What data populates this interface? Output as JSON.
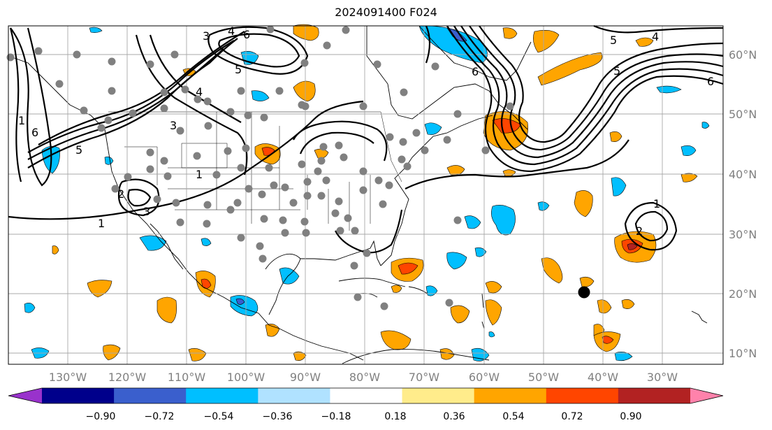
{
  "title": "2024091400 F024",
  "longitude_labels": [
    "130°W",
    "120°W",
    "110°W",
    "100°W",
    "90°W",
    "80°W",
    "70°W",
    "60°W",
    "50°W",
    "40°W",
    "30°W"
  ],
  "latitude_labels": [
    "60°N",
    "50°N",
    "40°N",
    "30°N",
    "20°N",
    "10°N"
  ],
  "colorbar": {
    "tick_labels": [
      "−0.90",
      "−0.72",
      "−0.54",
      "−0.36",
      "−0.18",
      "0.18",
      "0.36",
      "0.54",
      "0.72",
      "0.90"
    ],
    "colors": [
      "#9932cc",
      "#00008b",
      "#3a5fcd",
      "#00bfff",
      "#b0e2ff",
      "#ffffff",
      "#ffec8b",
      "#ffa500",
      "#ff4500",
      "#b22222",
      "#ff82ab"
    ]
  },
  "contour_labels": [
    "1",
    "1",
    "1",
    "2",
    "3",
    "3",
    "4",
    "4",
    "5",
    "5",
    "6",
    "6",
    "1",
    "2",
    "5",
    "6",
    "3",
    "4",
    "5",
    "6"
  ],
  "colors": {
    "contour": "#000000",
    "marker": "#808080",
    "storm_marker": "#000000",
    "grid": "#a9a9a9"
  }
}
